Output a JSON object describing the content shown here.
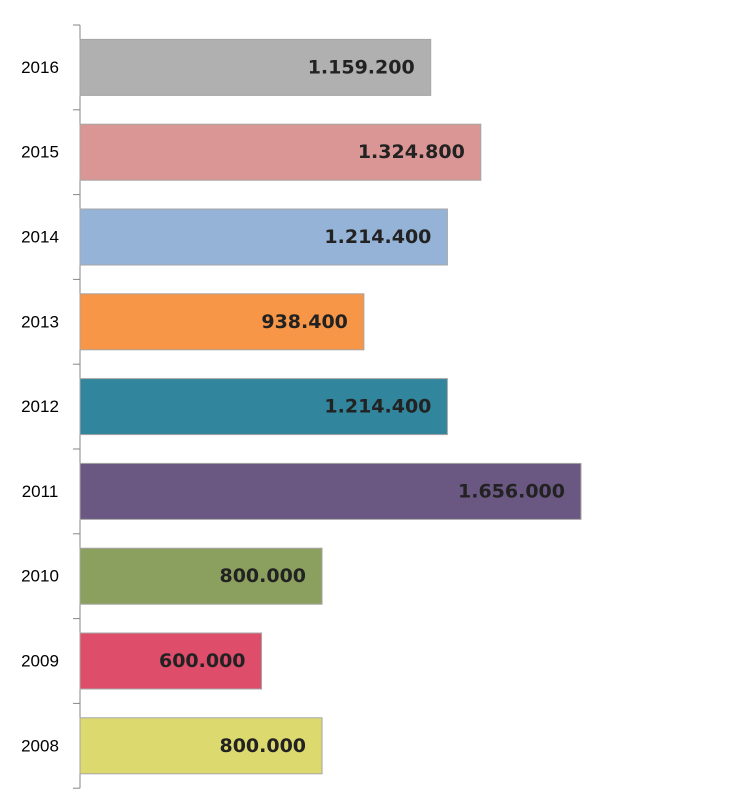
{
  "chart_data": {
    "type": "bar",
    "orientation": "horizontal",
    "title": "",
    "xlabel": "",
    "ylabel": "",
    "grid": false,
    "legend": "none",
    "xlim": [
      0,
      2000000
    ],
    "categories": [
      "2016",
      "2015",
      "2014",
      "2013",
      "2012",
      "2011",
      "2010",
      "2009",
      "2008"
    ],
    "values": [
      1159200,
      1324800,
      1214400,
      938400,
      1214400,
      1656000,
      800000,
      600000,
      800000
    ],
    "value_labels": [
      "1.159.200",
      "1.324.800",
      "1.214.400",
      "938.400",
      "1.214.400",
      "1.656.000",
      "800.000",
      "600.000",
      "800.000"
    ],
    "colors": [
      "#b0b0b0",
      "#d99694",
      "#95b3d7",
      "#f79646",
      "#31859c",
      "#6a5882",
      "#8ba05e",
      "#de4d6a",
      "#dcd96e"
    ]
  }
}
